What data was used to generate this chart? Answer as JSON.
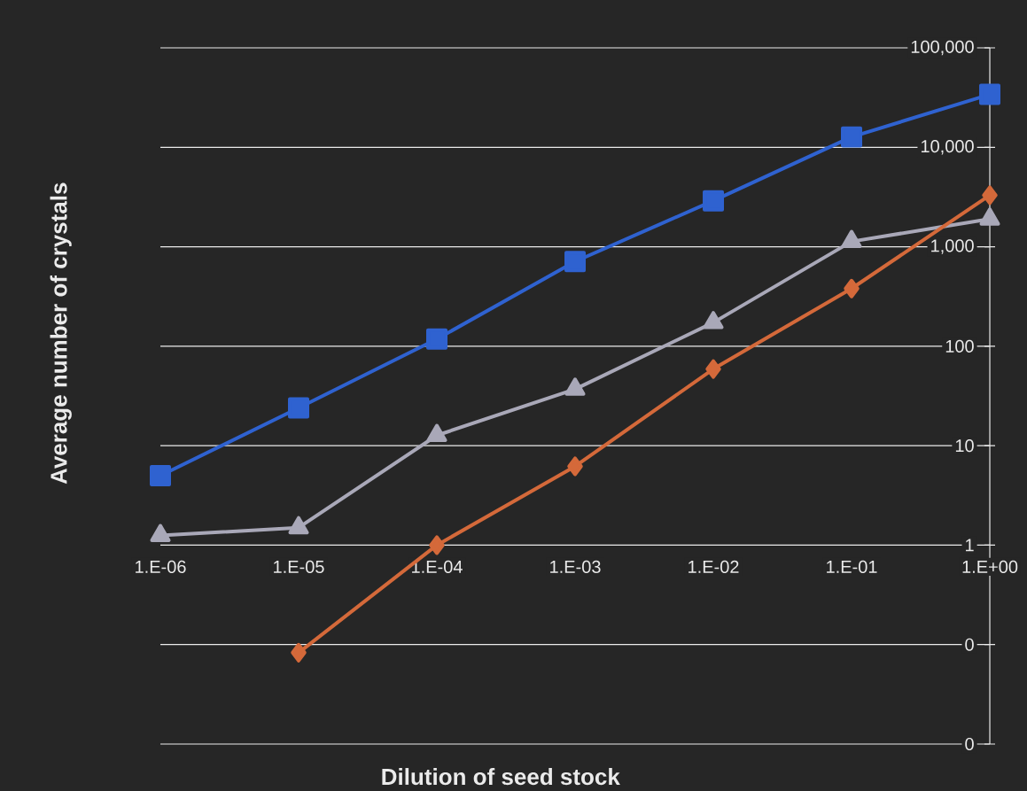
{
  "chart_data": {
    "type": "line",
    "xlabel": "Dilution of seed stock",
    "ylabel": "Average number of crystals",
    "categories": [
      "1.E-06",
      "1.E-05",
      "1.E-04",
      "1.E-03",
      "1.E-02",
      "1.E-01",
      "1.E+00"
    ],
    "series": [
      {
        "color": "#2f62d0",
        "marker": "square",
        "values": [
          5,
          24,
          118,
          710,
          2900,
          12700,
          34000
        ]
      },
      {
        "color": "#a9a8b8",
        "marker": "triangle",
        "values": [
          1.25,
          1.5,
          12.7,
          37,
          173,
          1130,
          1900
        ]
      },
      {
        "color": "#d4693a",
        "marker": "diamond",
        "values": [
          null,
          0.083,
          1,
          6.2,
          59,
          380,
          3300
        ]
      }
    ],
    "log": "y",
    "grid": "y",
    "line_style": "solid",
    "ylim": [
      0.01,
      100000
    ],
    "yticks": [
      {
        "value": 0.01,
        "label": "0"
      },
      {
        "value": 0.1,
        "label": "0"
      },
      1,
      10,
      100,
      {
        "value": 1000,
        "label": "1,000"
      },
      {
        "value": 10000,
        "label": "10,000"
      },
      {
        "value": 100000,
        "label": "100,000"
      }
    ]
  }
}
